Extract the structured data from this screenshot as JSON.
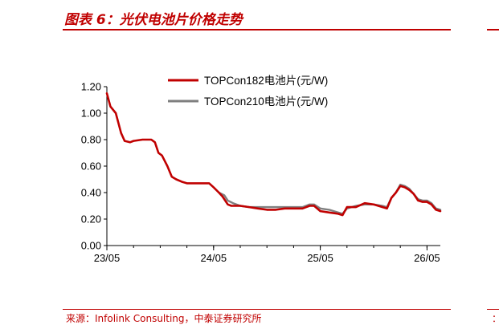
{
  "header": {
    "title": "图表 6：光伏电池片价格走势"
  },
  "footer": {
    "source": "来源：Infolink Consulting，中泰证券研究所",
    "right_fragment": "："
  },
  "colors": {
    "accent": "#c00000",
    "series1": "#c00000",
    "series2": "#7f7f7f",
    "axis": "#000000"
  },
  "chart_data": {
    "type": "line",
    "title": "",
    "xlabel": "",
    "ylabel": "",
    "x_ticks": [
      "23/05",
      "24/05",
      "25/05",
      "26/05"
    ],
    "x_range": [
      0,
      37.5
    ],
    "y_ticks": [
      "0.00",
      "0.20",
      "0.40",
      "0.60",
      "0.80",
      "1.00",
      "1.20"
    ],
    "ylim": [
      0,
      1.2
    ],
    "grid": false,
    "legend_position": "top",
    "series": [
      {
        "name": "TOPCon182电池片(元/W)",
        "color": "#c00000",
        "points": [
          [
            0,
            1.15
          ],
          [
            0.4,
            1.05
          ],
          [
            1,
            1.0
          ],
          [
            1.6,
            0.85
          ],
          [
            2,
            0.79
          ],
          [
            2.6,
            0.78
          ],
          [
            3,
            0.79
          ],
          [
            4,
            0.8
          ],
          [
            5,
            0.8
          ],
          [
            5.4,
            0.78
          ],
          [
            5.8,
            0.7
          ],
          [
            6.2,
            0.68
          ],
          [
            6.8,
            0.6
          ],
          [
            7.3,
            0.52
          ],
          [
            7.8,
            0.5
          ],
          [
            8.5,
            0.48
          ],
          [
            9,
            0.47
          ],
          [
            10,
            0.47
          ],
          [
            11,
            0.47
          ],
          [
            11.5,
            0.47
          ],
          [
            12,
            0.44
          ],
          [
            12.6,
            0.4
          ],
          [
            13,
            0.37
          ],
          [
            13.6,
            0.31
          ],
          [
            14,
            0.3
          ],
          [
            15,
            0.3
          ],
          [
            16,
            0.29
          ],
          [
            17,
            0.28
          ],
          [
            18,
            0.27
          ],
          [
            19,
            0.27
          ],
          [
            20,
            0.28
          ],
          [
            21,
            0.28
          ],
          [
            22,
            0.28
          ],
          [
            22.8,
            0.3
          ],
          [
            23.3,
            0.3
          ],
          [
            24,
            0.26
          ],
          [
            25,
            0.25
          ],
          [
            26,
            0.24
          ],
          [
            26.5,
            0.23
          ],
          [
            27,
            0.29
          ],
          [
            28,
            0.29
          ],
          [
            29,
            0.32
          ],
          [
            30,
            0.31
          ],
          [
            31,
            0.29
          ],
          [
            31.5,
            0.28
          ],
          [
            32,
            0.36
          ],
          [
            32.5,
            0.4
          ],
          [
            33,
            0.45
          ],
          [
            33.5,
            0.44
          ],
          [
            34,
            0.42
          ],
          [
            34.5,
            0.39
          ],
          [
            35,
            0.34
          ],
          [
            35.5,
            0.33
          ],
          [
            36,
            0.33
          ],
          [
            36.5,
            0.31
          ],
          [
            37,
            0.27
          ],
          [
            37.5,
            0.26
          ]
        ]
      },
      {
        "name": "TOPCon210电池片(元/W)",
        "color": "#7f7f7f",
        "points": [
          [
            12.6,
            0.4
          ],
          [
            13.2,
            0.38
          ],
          [
            13.6,
            0.34
          ],
          [
            14.2,
            0.32
          ],
          [
            15,
            0.3
          ],
          [
            16,
            0.29
          ],
          [
            17,
            0.29
          ],
          [
            18,
            0.29
          ],
          [
            19,
            0.29
          ],
          [
            20,
            0.29
          ],
          [
            21,
            0.29
          ],
          [
            22,
            0.29
          ],
          [
            22.8,
            0.31
          ],
          [
            23.3,
            0.31
          ],
          [
            24,
            0.28
          ],
          [
            25,
            0.27
          ],
          [
            26,
            0.25
          ],
          [
            26.5,
            0.24
          ],
          [
            27,
            0.28
          ],
          [
            28,
            0.3
          ],
          [
            29,
            0.31
          ],
          [
            30,
            0.31
          ],
          [
            31,
            0.3
          ],
          [
            31.5,
            0.29
          ],
          [
            32,
            0.36
          ],
          [
            32.5,
            0.4
          ],
          [
            33,
            0.46
          ],
          [
            33.5,
            0.45
          ],
          [
            34,
            0.43
          ],
          [
            34.5,
            0.39
          ],
          [
            35,
            0.35
          ],
          [
            35.5,
            0.34
          ],
          [
            36,
            0.34
          ],
          [
            36.5,
            0.32
          ],
          [
            37,
            0.28
          ],
          [
            37.5,
            0.27
          ]
        ]
      }
    ]
  }
}
